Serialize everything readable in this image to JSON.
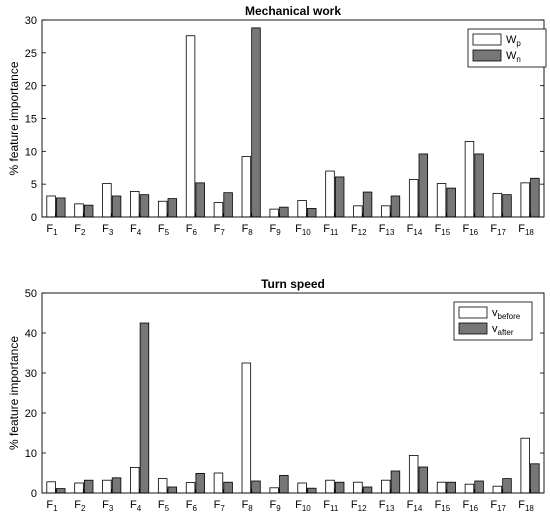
{
  "chart_data": [
    {
      "type": "bar",
      "title": "Mechanical work",
      "ylabel": "% feature importance",
      "ylim": [
        0,
        30
      ],
      "yticks": [
        0,
        5,
        10,
        15,
        20,
        25,
        30
      ],
      "categories": [
        {
          "base": "F",
          "sub": "1"
        },
        {
          "base": "F",
          "sub": "2"
        },
        {
          "base": "F",
          "sub": "3"
        },
        {
          "base": "F",
          "sub": "4"
        },
        {
          "base": "F",
          "sub": "5"
        },
        {
          "base": "F",
          "sub": "6"
        },
        {
          "base": "F",
          "sub": "7"
        },
        {
          "base": "F",
          "sub": "8"
        },
        {
          "base": "F",
          "sub": "9"
        },
        {
          "base": "F",
          "sub": "10"
        },
        {
          "base": "F",
          "sub": "11"
        },
        {
          "base": "F",
          "sub": "12"
        },
        {
          "base": "F",
          "sub": "13"
        },
        {
          "base": "F",
          "sub": "14"
        },
        {
          "base": "F",
          "sub": "15"
        },
        {
          "base": "F",
          "sub": "16"
        },
        {
          "base": "F",
          "sub": "17"
        },
        {
          "base": "F",
          "sub": "18"
        }
      ],
      "series": [
        {
          "name": {
            "base": "W",
            "sub": "p"
          },
          "color": "#ffffff",
          "values": [
            3.2,
            2.0,
            5.1,
            3.9,
            2.4,
            27.6,
            2.2,
            9.2,
            1.2,
            2.5,
            7.0,
            1.7,
            1.7,
            5.7,
            5.1,
            11.5,
            3.6,
            5.2
          ]
        },
        {
          "name": {
            "base": "W",
            "sub": "n"
          },
          "color": "#777777",
          "values": [
            2.9,
            1.8,
            3.2,
            3.4,
            2.8,
            5.2,
            3.7,
            28.8,
            1.5,
            1.3,
            6.1,
            3.8,
            3.2,
            9.6,
            4.4,
            9.6,
            3.4,
            5.9
          ]
        }
      ],
      "legend": "top-right"
    },
    {
      "type": "bar",
      "title": "Turn speed",
      "ylabel": "% feature importance",
      "ylim": [
        0,
        50
      ],
      "yticks": [
        0,
        10,
        20,
        30,
        40,
        50
      ],
      "categories": [
        {
          "base": "F",
          "sub": "1"
        },
        {
          "base": "F",
          "sub": "2"
        },
        {
          "base": "F",
          "sub": "3"
        },
        {
          "base": "F",
          "sub": "4"
        },
        {
          "base": "F",
          "sub": "5"
        },
        {
          "base": "F",
          "sub": "6"
        },
        {
          "base": "F",
          "sub": "7"
        },
        {
          "base": "F",
          "sub": "8"
        },
        {
          "base": "F",
          "sub": "9"
        },
        {
          "base": "F",
          "sub": "10"
        },
        {
          "base": "F",
          "sub": "11"
        },
        {
          "base": "F",
          "sub": "12"
        },
        {
          "base": "F",
          "sub": "13"
        },
        {
          "base": "F",
          "sub": "14"
        },
        {
          "base": "F",
          "sub": "15"
        },
        {
          "base": "F",
          "sub": "16"
        },
        {
          "base": "F",
          "sub": "17"
        },
        {
          "base": "F",
          "sub": "18"
        }
      ],
      "series": [
        {
          "name": {
            "base": "v",
            "sub": "before"
          },
          "color": "#ffffff",
          "values": [
            2.8,
            2.5,
            3.2,
            6.4,
            3.6,
            2.6,
            5.0,
            32.5,
            1.3,
            2.5,
            3.2,
            2.7,
            3.2,
            9.4,
            2.7,
            2.2,
            1.7,
            13.7
          ]
        },
        {
          "name": {
            "base": "v",
            "sub": "after"
          },
          "color": "#777777",
          "values": [
            1.1,
            3.2,
            3.8,
            42.5,
            1.5,
            4.9,
            2.7,
            3.0,
            4.4,
            1.2,
            2.7,
            1.5,
            5.5,
            6.5,
            2.7,
            3.0,
            3.6,
            7.3
          ]
        }
      ],
      "legend": "top-right"
    }
  ]
}
